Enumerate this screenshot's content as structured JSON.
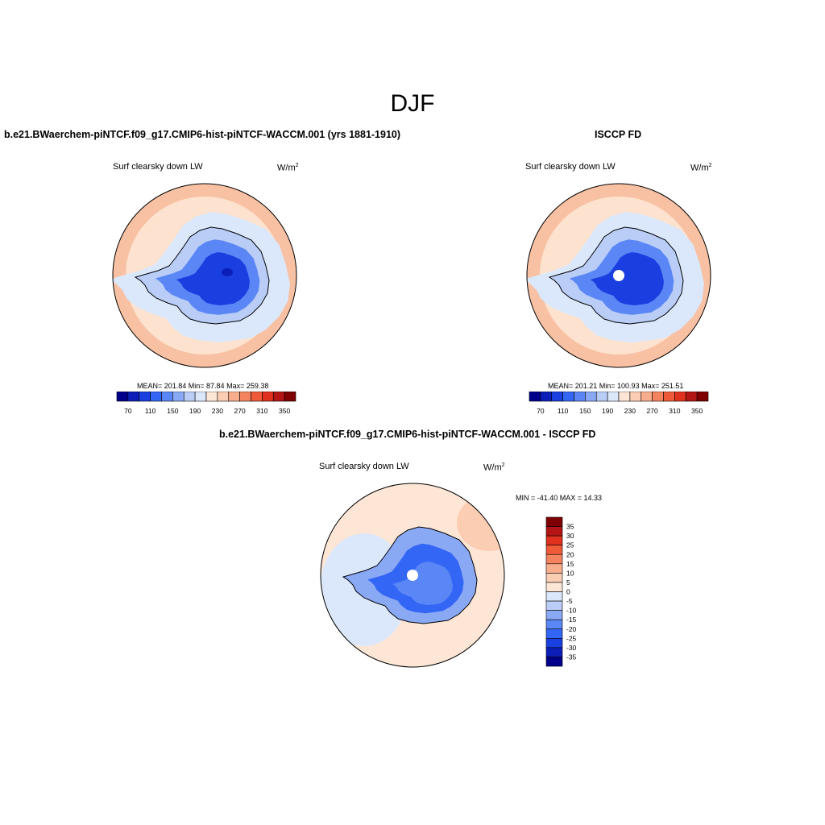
{
  "figure": {
    "season": "DJF",
    "panel1_title": "b.e21.BWaerchem-piNTCF.f09_g17.CMIP6-hist-piNTCF-WACCM.001 (yrs 1881-1910)",
    "panel2_title": "ISCCP FD",
    "panel3_title": "b.e21.BWaerchem-piNTCF.f09_g17.CMIP6-hist-piNTCF-WACCM.001 - ISCCP FD"
  },
  "chart_data": [
    {
      "type": "heatmap",
      "projection": "south-polar-stereographic",
      "title": "b.e21.BWaerchem-piNTCF.f09_g17.CMIP6-hist-piNTCF-WACCM.001 (yrs 1881-1910)",
      "variable": "Surf clearsky down LW",
      "units": "W/m",
      "units_exp": "2",
      "stats_text": "MEAN= 201.84  Min=  87.84  Max= 259.38",
      "mean": 201.84,
      "min": 87.84,
      "max": 259.38,
      "colorbar_labels": [
        "70",
        "110",
        "150",
        "190",
        "230",
        "270",
        "310",
        "350"
      ],
      "colorbar_levels": [
        70,
        90,
        110,
        130,
        150,
        170,
        190,
        210,
        230,
        250,
        270,
        290,
        310,
        330,
        350
      ]
    },
    {
      "type": "heatmap",
      "projection": "south-polar-stereographic",
      "title": "ISCCP FD",
      "variable": "Surf clearsky down LW",
      "units": "W/m",
      "units_exp": "2",
      "stats_text": "MEAN= 201.21  Min= 100.93  Max= 251.51",
      "mean": 201.21,
      "min": 100.93,
      "max": 251.51,
      "colorbar_labels": [
        "70",
        "110",
        "150",
        "190",
        "230",
        "270",
        "310",
        "350"
      ],
      "colorbar_levels": [
        70,
        90,
        110,
        130,
        150,
        170,
        190,
        210,
        230,
        250,
        270,
        290,
        310,
        330,
        350
      ]
    },
    {
      "type": "heatmap",
      "projection": "south-polar-stereographic",
      "title": "b.e21.BWaerchem-piNTCF.f09_g17.CMIP6-hist-piNTCF-WACCM.001 - ISCCP FD",
      "variable": "Surf clearsky down LW",
      "units": "W/m",
      "units_exp": "2",
      "stats_text": "MIN = -41.40 MAX =  14.33",
      "min": -41.4,
      "max": 14.33,
      "colorbar_labels": [
        "35",
        "30",
        "25",
        "20",
        "15",
        "10",
        "5",
        "0",
        "-5",
        "-10",
        "-15",
        "-20",
        "-25",
        "-30",
        "-35"
      ],
      "colorbar_levels": [
        35,
        30,
        25,
        20,
        15,
        10,
        5,
        0,
        -5,
        -10,
        -15,
        -20,
        -25,
        -30,
        -35
      ]
    }
  ],
  "colors": {
    "scale": [
      "#00008b",
      "#0b1fb8",
      "#1a3fe0",
      "#3366f5",
      "#5a87f5",
      "#8aa9f5",
      "#b9cdf7",
      "#dbe8fb",
      "#fde6d6",
      "#fbcdb3",
      "#f8ad8c",
      "#f4845f",
      "#ef5a38",
      "#e0301e",
      "#b31414",
      "#7f0000"
    ],
    "diff_scale": [
      "#7f0000",
      "#b31414",
      "#e0301e",
      "#ef5a38",
      "#f4845f",
      "#f8ad8c",
      "#fbcdb3",
      "#fde6d6",
      "#dbe8fb",
      "#b9cdf7",
      "#8aa9f5",
      "#5a87f5",
      "#3366f5",
      "#1a3fe0",
      "#0b1fb8",
      "#00008b"
    ],
    "ocean_far": "#f8c1a3",
    "ocean_mid": "#fde3cf",
    "ice_edge": "#dbe8fb",
    "coast": "#b9cdf7",
    "ice_mid": "#5a87f5",
    "ice_core": "#1a3fe0",
    "ice_deep": "#0b1fb8"
  }
}
